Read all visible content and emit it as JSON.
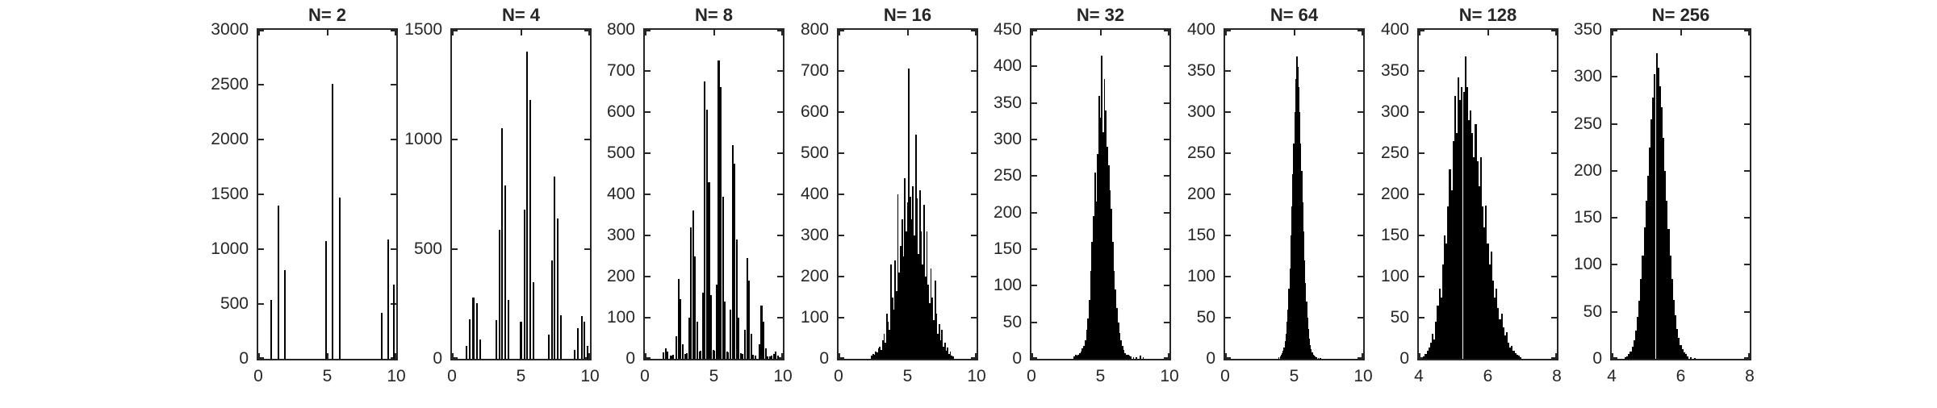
{
  "figure": {
    "background": "#ffffff",
    "bar_color": "#000000",
    "axis_color": "#262626",
    "text_color": "#262626"
  },
  "chart_data": [
    {
      "type": "bar",
      "title": "N= 2",
      "xlim": [
        0,
        10
      ],
      "xticks": [
        0,
        5,
        10
      ],
      "ylim": [
        0,
        3000
      ],
      "yticks": [
        0,
        500,
        1000,
        1500,
        2000,
        2500,
        3000
      ],
      "bar_width": 0.12,
      "bars": [
        [
          0.95,
          540
        ],
        [
          1.45,
          1400
        ],
        [
          1.95,
          810
        ],
        [
          4.9,
          1070
        ],
        [
          5.4,
          2510
        ],
        [
          5.88,
          1470
        ],
        [
          8.95,
          420
        ],
        [
          9.4,
          1090
        ],
        [
          9.85,
          680
        ]
      ]
    },
    {
      "type": "bar",
      "title": "N= 4",
      "xlim": [
        0,
        10
      ],
      "xticks": [
        0,
        5,
        10
      ],
      "ylim": [
        0,
        1500
      ],
      "yticks": [
        0,
        500,
        1000,
        1500
      ],
      "bar_width": 0.12,
      "bars": [
        [
          1.05,
          60
        ],
        [
          1.3,
          180
        ],
        [
          1.55,
          280
        ],
        [
          1.8,
          255
        ],
        [
          2.05,
          90
        ],
        [
          3.2,
          175
        ],
        [
          3.45,
          590
        ],
        [
          3.65,
          1050
        ],
        [
          3.85,
          790
        ],
        [
          4.1,
          270
        ],
        [
          5.0,
          170
        ],
        [
          5.25,
          680
        ],
        [
          5.45,
          1400
        ],
        [
          5.65,
          1180
        ],
        [
          5.9,
          350
        ],
        [
          7.0,
          110
        ],
        [
          7.25,
          450
        ],
        [
          7.45,
          830
        ],
        [
          7.65,
          640
        ],
        [
          7.9,
          200
        ],
        [
          8.9,
          40
        ],
        [
          9.15,
          140
        ],
        [
          9.4,
          195
        ],
        [
          9.6,
          170
        ],
        [
          9.85,
          60
        ]
      ]
    },
    {
      "type": "bar",
      "title": "N= 8",
      "xlim": [
        0,
        10
      ],
      "xticks": [
        0,
        5,
        10
      ],
      "ylim": [
        0,
        800
      ],
      "yticks": [
        0,
        100,
        200,
        300,
        400,
        500,
        600,
        700,
        800
      ],
      "bar_width": 0.12,
      "bars": [
        [
          1.35,
          15
        ],
        [
          1.5,
          25
        ],
        [
          1.65,
          18
        ],
        [
          1.9,
          8
        ],
        [
          2.05,
          10
        ],
        [
          2.3,
          55
        ],
        [
          2.45,
          195
        ],
        [
          2.6,
          145
        ],
        [
          2.75,
          35
        ],
        [
          2.9,
          12
        ],
        [
          3.05,
          14
        ],
        [
          3.2,
          100
        ],
        [
          3.35,
          320
        ],
        [
          3.5,
          360
        ],
        [
          3.65,
          250
        ],
        [
          3.8,
          90
        ],
        [
          3.95,
          18
        ],
        [
          4.05,
          20
        ],
        [
          4.2,
          160
        ],
        [
          4.35,
          675
        ],
        [
          4.5,
          605
        ],
        [
          4.65,
          430
        ],
        [
          4.8,
          155
        ],
        [
          4.95,
          22
        ],
        [
          5.05,
          20
        ],
        [
          5.2,
          180
        ],
        [
          5.35,
          725
        ],
        [
          5.5,
          660
        ],
        [
          5.65,
          395
        ],
        [
          5.8,
          140
        ],
        [
          5.95,
          18
        ],
        [
          6.05,
          16
        ],
        [
          6.2,
          120
        ],
        [
          6.35,
          520
        ],
        [
          6.5,
          475
        ],
        [
          6.65,
          290
        ],
        [
          6.8,
          100
        ],
        [
          6.95,
          14
        ],
        [
          7.1,
          12
        ],
        [
          7.25,
          70
        ],
        [
          7.4,
          245
        ],
        [
          7.55,
          190
        ],
        [
          7.7,
          60
        ],
        [
          7.85,
          10
        ],
        [
          8.0,
          8
        ],
        [
          8.3,
          35
        ],
        [
          8.45,
          130
        ],
        [
          8.6,
          90
        ],
        [
          8.75,
          25
        ],
        [
          8.9,
          6
        ],
        [
          9.05,
          5
        ],
        [
          9.2,
          8
        ],
        [
          9.35,
          12
        ],
        [
          9.5,
          18
        ],
        [
          9.65,
          8
        ]
      ]
    },
    {
      "type": "bar",
      "title": "N= 16",
      "xlim": [
        0,
        10
      ],
      "xticks": [
        0,
        5,
        10
      ],
      "ylim": [
        0,
        800
      ],
      "yticks": [
        0,
        100,
        200,
        300,
        400,
        500,
        600,
        700,
        800
      ],
      "bar_width": 0.1,
      "bars": [
        [
          2.4,
          8
        ],
        [
          2.5,
          12
        ],
        [
          2.6,
          10
        ],
        [
          2.7,
          18
        ],
        [
          2.8,
          15
        ],
        [
          2.9,
          25
        ],
        [
          3.0,
          30
        ],
        [
          3.1,
          22
        ],
        [
          3.2,
          45
        ],
        [
          3.3,
          60
        ],
        [
          3.4,
          40
        ],
        [
          3.5,
          110
        ],
        [
          3.6,
          90
        ],
        [
          3.7,
          70
        ],
        [
          3.8,
          230
        ],
        [
          3.9,
          150
        ],
        [
          4.0,
          120
        ],
        [
          4.1,
          240
        ],
        [
          4.2,
          165
        ],
        [
          4.3,
          400
        ],
        [
          4.4,
          210
        ],
        [
          4.5,
          275
        ],
        [
          4.6,
          340
        ],
        [
          4.7,
          250
        ],
        [
          4.8,
          440
        ],
        [
          4.9,
          310
        ],
        [
          5.0,
          380
        ],
        [
          5.1,
          705
        ],
        [
          5.2,
          395
        ],
        [
          5.3,
          340
        ],
        [
          5.4,
          420
        ],
        [
          5.5,
          300
        ],
        [
          5.6,
          545
        ],
        [
          5.7,
          390
        ],
        [
          5.8,
          255
        ],
        [
          5.9,
          410
        ],
        [
          6.0,
          310
        ],
        [
          6.1,
          230
        ],
        [
          6.2,
          375
        ],
        [
          6.3,
          200
        ],
        [
          6.4,
          310
        ],
        [
          6.5,
          180
        ],
        [
          6.6,
          135
        ],
        [
          6.7,
          220
        ],
        [
          6.8,
          150
        ],
        [
          6.9,
          95
        ],
        [
          7.0,
          190
        ],
        [
          7.1,
          110
        ],
        [
          7.2,
          60
        ],
        [
          7.3,
          85
        ],
        [
          7.4,
          45
        ],
        [
          7.5,
          70
        ],
        [
          7.6,
          30
        ],
        [
          7.7,
          40
        ],
        [
          7.8,
          20
        ],
        [
          7.9,
          28
        ],
        [
          8.0,
          12
        ],
        [
          8.1,
          18
        ],
        [
          8.2,
          8
        ],
        [
          8.3,
          5
        ]
      ]
    },
    {
      "type": "bar",
      "title": "N= 32",
      "xlim": [
        0,
        10
      ],
      "xticks": [
        0,
        5,
        10
      ],
      "ylim": [
        0,
        450
      ],
      "yticks": [
        0,
        50,
        100,
        150,
        200,
        250,
        300,
        350,
        400,
        450
      ],
      "bar_width": 0.1,
      "bars": [
        [
          3.1,
          3
        ],
        [
          3.2,
          5
        ],
        [
          3.3,
          4
        ],
        [
          3.4,
          6
        ],
        [
          3.5,
          8
        ],
        [
          3.6,
          10
        ],
        [
          3.7,
          14
        ],
        [
          3.8,
          18
        ],
        [
          3.9,
          25
        ],
        [
          4.0,
          40
        ],
        [
          4.1,
          55
        ],
        [
          4.2,
          80
        ],
        [
          4.3,
          120
        ],
        [
          4.4,
          160
        ],
        [
          4.5,
          195
        ],
        [
          4.6,
          255
        ],
        [
          4.7,
          215
        ],
        [
          4.8,
          280
        ],
        [
          4.9,
          360
        ],
        [
          5.0,
          330
        ],
        [
          5.1,
          415
        ],
        [
          5.2,
          310
        ],
        [
          5.3,
          383
        ],
        [
          5.4,
          340
        ],
        [
          5.5,
          290
        ],
        [
          5.6,
          265
        ],
        [
          5.7,
          230
        ],
        [
          5.8,
          205
        ],
        [
          5.9,
          160
        ],
        [
          6.0,
          120
        ],
        [
          6.1,
          95
        ],
        [
          6.2,
          70
        ],
        [
          6.3,
          50
        ],
        [
          6.4,
          35
        ],
        [
          6.5,
          25
        ],
        [
          6.6,
          18
        ],
        [
          6.7,
          12
        ],
        [
          6.8,
          8
        ],
        [
          6.9,
          6
        ],
        [
          7.0,
          5
        ],
        [
          7.1,
          4
        ],
        [
          7.2,
          3
        ],
        [
          7.4,
          2
        ],
        [
          7.6,
          2
        ],
        [
          7.9,
          4
        ],
        [
          8.1,
          2
        ]
      ]
    },
    {
      "type": "bar",
      "title": "N= 64",
      "xlim": [
        0,
        10
      ],
      "xticks": [
        0,
        5,
        10
      ],
      "ylim": [
        0,
        400
      ],
      "yticks": [
        0,
        50,
        100,
        150,
        200,
        250,
        300,
        350,
        400
      ],
      "bar_width": 0.07,
      "bars": [
        [
          3.9,
          2
        ],
        [
          4.0,
          3
        ],
        [
          4.07,
          5
        ],
        [
          4.14,
          7
        ],
        [
          4.21,
          10
        ],
        [
          4.28,
          14
        ],
        [
          4.35,
          22
        ],
        [
          4.42,
          30
        ],
        [
          4.49,
          45
        ],
        [
          4.56,
          60
        ],
        [
          4.63,
          85
        ],
        [
          4.7,
          110
        ],
        [
          4.77,
          150
        ],
        [
          4.84,
          185
        ],
        [
          4.91,
          225
        ],
        [
          4.98,
          262
        ],
        [
          5.05,
          300
        ],
        [
          5.12,
          340
        ],
        [
          5.19,
          368
        ],
        [
          5.26,
          355
        ],
        [
          5.33,
          330
        ],
        [
          5.4,
          300
        ],
        [
          5.47,
          262
        ],
        [
          5.54,
          228
        ],
        [
          5.61,
          190
        ],
        [
          5.68,
          155
        ],
        [
          5.75,
          120
        ],
        [
          5.82,
          92
        ],
        [
          5.89,
          70
        ],
        [
          5.96,
          50
        ],
        [
          6.03,
          36
        ],
        [
          6.1,
          25
        ],
        [
          6.17,
          17
        ],
        [
          6.24,
          12
        ],
        [
          6.31,
          8
        ],
        [
          6.38,
          5
        ],
        [
          6.45,
          4
        ],
        [
          6.52,
          3
        ],
        [
          6.6,
          2
        ],
        [
          6.75,
          1
        ],
        [
          6.9,
          1
        ]
      ]
    },
    {
      "type": "bar",
      "title": "N= 128",
      "xlim": [
        4,
        8
      ],
      "xticks": [
        4,
        6,
        8
      ],
      "ylim": [
        0,
        400
      ],
      "yticks": [
        0,
        50,
        100,
        150,
        200,
        250,
        300,
        350,
        400
      ],
      "bar_width": 0.05,
      "bars": [
        [
          4.15,
          3
        ],
        [
          4.2,
          6
        ],
        [
          4.25,
          10
        ],
        [
          4.3,
          14
        ],
        [
          4.35,
          20
        ],
        [
          4.4,
          30
        ],
        [
          4.45,
          24
        ],
        [
          4.5,
          45
        ],
        [
          4.55,
          65
        ],
        [
          4.6,
          85
        ],
        [
          4.65,
          75
        ],
        [
          4.7,
          115
        ],
        [
          4.75,
          150
        ],
        [
          4.8,
          140
        ],
        [
          4.85,
          185
        ],
        [
          4.9,
          230
        ],
        [
          4.95,
          205
        ],
        [
          5.0,
          265
        ],
        [
          5.05,
          320
        ],
        [
          5.1,
          275
        ],
        [
          5.15,
          342
        ],
        [
          5.2,
          315
        ],
        [
          5.25,
          330
        ],
        [
          5.3,
          325
        ],
        [
          5.35,
          368
        ],
        [
          5.4,
          330
        ],
        [
          5.45,
          290
        ],
        [
          5.5,
          302
        ],
        [
          5.55,
          275
        ],
        [
          5.6,
          245
        ],
        [
          5.65,
          285
        ],
        [
          5.7,
          240
        ],
        [
          5.75,
          210
        ],
        [
          5.8,
          245
        ],
        [
          5.85,
          185
        ],
        [
          5.9,
          160
        ],
        [
          5.95,
          186
        ],
        [
          6.0,
          140
        ],
        [
          6.05,
          115
        ],
        [
          6.1,
          130
        ],
        [
          6.15,
          95
        ],
        [
          6.2,
          75
        ],
        [
          6.25,
          85
        ],
        [
          6.3,
          62
        ],
        [
          6.35,
          48
        ],
        [
          6.4,
          55
        ],
        [
          6.45,
          38
        ],
        [
          6.5,
          28
        ],
        [
          6.55,
          32
        ],
        [
          6.6,
          20
        ],
        [
          6.65,
          14
        ],
        [
          6.7,
          16
        ],
        [
          6.75,
          10
        ],
        [
          6.8,
          7
        ],
        [
          6.85,
          5
        ],
        [
          6.9,
          4
        ],
        [
          6.95,
          2
        ]
      ]
    },
    {
      "type": "bar",
      "title": "N= 256",
      "xlim": [
        4,
        8
      ],
      "xticks": [
        4,
        6,
        8
      ],
      "ylim": [
        0,
        350
      ],
      "yticks": [
        0,
        50,
        100,
        150,
        200,
        250,
        300,
        350
      ],
      "bar_width": 0.05,
      "bars": [
        [
          4.4,
          2
        ],
        [
          4.45,
          3
        ],
        [
          4.5,
          5
        ],
        [
          4.55,
          8
        ],
        [
          4.6,
          13
        ],
        [
          4.65,
          20
        ],
        [
          4.7,
          30
        ],
        [
          4.75,
          45
        ],
        [
          4.8,
          62
        ],
        [
          4.85,
          85
        ],
        [
          4.9,
          110
        ],
        [
          4.95,
          140
        ],
        [
          5.0,
          168
        ],
        [
          5.05,
          195
        ],
        [
          5.1,
          225
        ],
        [
          5.15,
          255
        ],
        [
          5.2,
          278
        ],
        [
          5.25,
          303
        ],
        [
          5.3,
          325
        ],
        [
          5.35,
          310
        ],
        [
          5.4,
          290
        ],
        [
          5.45,
          268
        ],
        [
          5.5,
          235
        ],
        [
          5.55,
          200
        ],
        [
          5.6,
          168
        ],
        [
          5.65,
          138
        ],
        [
          5.7,
          110
        ],
        [
          5.75,
          85
        ],
        [
          5.8,
          63
        ],
        [
          5.85,
          46
        ],
        [
          5.9,
          32
        ],
        [
          5.95,
          22
        ],
        [
          6.0,
          15
        ],
        [
          6.05,
          10
        ],
        [
          6.1,
          7
        ],
        [
          6.15,
          5
        ],
        [
          6.2,
          3
        ],
        [
          6.3,
          2
        ],
        [
          6.4,
          1
        ]
      ]
    }
  ]
}
